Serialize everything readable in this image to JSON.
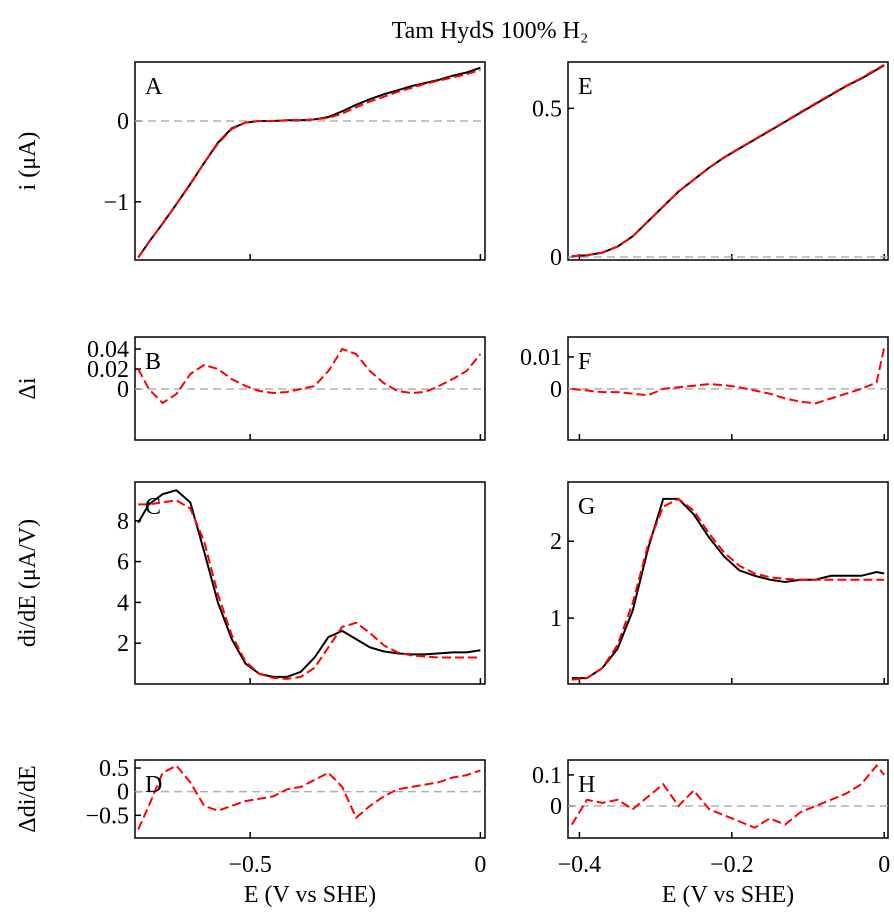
{
  "title": "Tam HydS 100% H₂",
  "chart_data": [
    {
      "type": "line",
      "label": "A",
      "ylabel": "i (μA)",
      "x": [
        -0.743,
        -0.72,
        -0.69,
        -0.66,
        -0.63,
        -0.6,
        -0.57,
        -0.54,
        -0.51,
        -0.48,
        -0.45,
        -0.42,
        -0.39,
        -0.36,
        -0.33,
        -0.3,
        -0.27,
        -0.24,
        -0.21,
        -0.18,
        -0.15,
        -0.12,
        -0.09,
        -0.06,
        -0.03,
        0
      ],
      "xlim": [
        -0.75,
        0.01
      ],
      "ylim": [
        -1.72,
        0.73
      ],
      "yticks": [
        {
          "value": -1,
          "label": "−1"
        },
        0
      ],
      "reference_line": 0,
      "series": [
        {
          "color": "#000000",
          "dashed": false,
          "values": [
            -1.69,
            -1.5,
            -1.27,
            -1.03,
            -0.78,
            -0.52,
            -0.27,
            -0.09,
            -0.02,
            0,
            0,
            0.01,
            0.01,
            0.02,
            0.05,
            0.12,
            0.2,
            0.27,
            0.33,
            0.38,
            0.43,
            0.47,
            0.51,
            0.56,
            0.6,
            0.66
          ]
        },
        {
          "color": "#ff0000",
          "dashed": true,
          "values": [
            -1.69,
            -1.5,
            -1.27,
            -1.03,
            -0.78,
            -0.52,
            -0.28,
            -0.1,
            -0.02,
            0,
            0,
            0.01,
            0.01,
            0.02,
            0.04,
            0.09,
            0.17,
            0.24,
            0.3,
            0.36,
            0.41,
            0.46,
            0.5,
            0.54,
            0.58,
            0.63
          ]
        }
      ]
    },
    {
      "type": "line",
      "label": "B",
      "ylabel": "Δi",
      "x": [
        -0.743,
        -0.72,
        -0.69,
        -0.66,
        -0.63,
        -0.6,
        -0.57,
        -0.54,
        -0.51,
        -0.48,
        -0.45,
        -0.42,
        -0.39,
        -0.36,
        -0.33,
        -0.3,
        -0.27,
        -0.24,
        -0.21,
        -0.18,
        -0.15,
        -0.12,
        -0.09,
        -0.06,
        -0.03,
        0
      ],
      "xlim": [
        -0.75,
        0.01
      ],
      "ylim": [
        -0.051,
        0.052
      ],
      "yticks": [
        0,
        0.02,
        0.04
      ],
      "reference_line": 0,
      "series": [
        {
          "color": "#ff0000",
          "dashed": true,
          "values": [
            0.02,
            0,
            -0.014,
            -0.005,
            0.015,
            0.024,
            0.02,
            0.01,
            0.003,
            -0.002,
            -0.004,
            -0.003,
            0,
            0.003,
            0.018,
            0.04,
            0.035,
            0.018,
            0.006,
            -0.002,
            -0.004,
            -0.003,
            0.003,
            0.01,
            0.018,
            0.035
          ]
        }
      ]
    },
    {
      "type": "line",
      "label": "C",
      "ylabel": "di/dE (μA/V)",
      "x": [
        -0.743,
        -0.72,
        -0.69,
        -0.66,
        -0.63,
        -0.6,
        -0.57,
        -0.54,
        -0.51,
        -0.48,
        -0.45,
        -0.42,
        -0.39,
        -0.36,
        -0.33,
        -0.3,
        -0.27,
        -0.24,
        -0.21,
        -0.18,
        -0.15,
        -0.12,
        -0.09,
        -0.06,
        -0.03,
        0
      ],
      "xlim": [
        -0.75,
        0.01
      ],
      "ylim": [
        0,
        9.9
      ],
      "yticks": [
        2,
        4,
        6,
        8
      ],
      "series": [
        {
          "color": "#000000",
          "dashed": false,
          "values": [
            7.9,
            8.8,
            9.3,
            9.5,
            8.9,
            6.5,
            4.0,
            2.2,
            1.0,
            0.5,
            0.35,
            0.35,
            0.6,
            1.3,
            2.3,
            2.6,
            2.2,
            1.8,
            1.6,
            1.5,
            1.45,
            1.45,
            1.5,
            1.55,
            1.55,
            1.65
          ]
        },
        {
          "color": "#ff0000",
          "dashed": true,
          "values": [
            8.8,
            8.8,
            8.9,
            9.0,
            8.6,
            7.0,
            4.4,
            2.4,
            1.1,
            0.5,
            0.3,
            0.25,
            0.35,
            0.8,
            1.8,
            2.8,
            3.0,
            2.5,
            1.9,
            1.55,
            1.4,
            1.35,
            1.3,
            1.3,
            1.3,
            1.3
          ]
        }
      ]
    },
    {
      "type": "line",
      "label": "D",
      "ylabel": "Δdi/dE",
      "xlabel": "E (V vs SHE)",
      "x": [
        -0.743,
        -0.72,
        -0.69,
        -0.66,
        -0.63,
        -0.6,
        -0.57,
        -0.54,
        -0.51,
        -0.48,
        -0.45,
        -0.42,
        -0.39,
        -0.36,
        -0.33,
        -0.3,
        -0.27,
        -0.24,
        -0.21,
        -0.18,
        -0.15,
        -0.12,
        -0.09,
        -0.06,
        -0.03,
        0
      ],
      "xlim": [
        -0.75,
        0.01
      ],
      "ylim": [
        -0.98,
        0.67
      ],
      "xticks": [
        {
          "value": -0.5,
          "label": "−0.5"
        },
        0
      ],
      "yticks": [
        {
          "value": -0.5,
          "label": "−0.5"
        },
        0,
        0.5
      ],
      "reference_line": 0,
      "series": [
        {
          "color": "#ff0000",
          "dashed": true,
          "values": [
            -0.8,
            -0.3,
            0.4,
            0.55,
            0.2,
            -0.3,
            -0.4,
            -0.3,
            -0.2,
            -0.15,
            -0.1,
            0.05,
            0.1,
            0.25,
            0.4,
            0.1,
            -0.55,
            -0.3,
            -0.1,
            0.05,
            0.1,
            0.15,
            0.2,
            0.3,
            0.35,
            0.45
          ]
        }
      ]
    },
    {
      "type": "line",
      "label": "E",
      "x": [
        -0.41,
        -0.39,
        -0.37,
        -0.35,
        -0.33,
        -0.31,
        -0.29,
        -0.27,
        -0.25,
        -0.23,
        -0.21,
        -0.19,
        -0.17,
        -0.15,
        -0.13,
        -0.11,
        -0.09,
        -0.07,
        -0.05,
        -0.03,
        -0.01,
        0
      ],
      "xlim": [
        -0.415,
        0.005
      ],
      "ylim": [
        -0.01,
        0.656
      ],
      "yticks": [
        0,
        0.5
      ],
      "reference_line": 0,
      "series": [
        {
          "color": "#000000",
          "dashed": false,
          "values": [
            0.003,
            0.006,
            0.015,
            0.035,
            0.07,
            0.12,
            0.17,
            0.22,
            0.26,
            0.3,
            0.335,
            0.365,
            0.395,
            0.425,
            0.455,
            0.485,
            0.515,
            0.545,
            0.575,
            0.6,
            0.63,
            0.645
          ]
        },
        {
          "color": "#ff0000",
          "dashed": true,
          "values": [
            0.003,
            0.006,
            0.015,
            0.035,
            0.07,
            0.12,
            0.17,
            0.22,
            0.26,
            0.3,
            0.335,
            0.366,
            0.396,
            0.426,
            0.456,
            0.487,
            0.517,
            0.547,
            0.576,
            0.602,
            0.632,
            0.647
          ]
        }
      ]
    },
    {
      "type": "line",
      "label": "F",
      "x": [
        -0.41,
        -0.39,
        -0.37,
        -0.35,
        -0.33,
        -0.31,
        -0.29,
        -0.27,
        -0.25,
        -0.23,
        -0.21,
        -0.19,
        -0.17,
        -0.15,
        -0.13,
        -0.11,
        -0.09,
        -0.07,
        -0.05,
        -0.03,
        -0.01,
        0
      ],
      "xlim": [
        -0.415,
        0.005
      ],
      "ylim": [
        -0.016,
        0.01625
      ],
      "yticks": [
        0,
        0.01
      ],
      "reference_line": 0,
      "series": [
        {
          "color": "#ff0000",
          "dashed": true,
          "values": [
            0,
            -0.0005,
            -0.001,
            -0.001,
            -0.0015,
            -0.002,
            0,
            0.0005,
            0.001,
            0.0015,
            0.0012,
            0.0005,
            -0.0005,
            -0.0015,
            -0.003,
            -0.004,
            -0.0045,
            -0.003,
            -0.0015,
            0,
            0.002,
            0.013
          ]
        }
      ]
    },
    {
      "type": "line",
      "label": "G",
      "x": [
        -0.41,
        -0.39,
        -0.37,
        -0.35,
        -0.33,
        -0.31,
        -0.29,
        -0.27,
        -0.25,
        -0.23,
        -0.21,
        -0.19,
        -0.17,
        -0.15,
        -0.13,
        -0.11,
        -0.09,
        -0.07,
        -0.05,
        -0.03,
        -0.01,
        0
      ],
      "xlim": [
        -0.415,
        0.005
      ],
      "ylim": [
        0.143,
        2.77
      ],
      "yticks": [
        1,
        2
      ],
      "series": [
        {
          "color": "#000000",
          "dashed": false,
          "values": [
            0.22,
            0.22,
            0.35,
            0.6,
            1.1,
            1.9,
            2.55,
            2.55,
            2.35,
            2.05,
            1.8,
            1.62,
            1.55,
            1.5,
            1.47,
            1.5,
            1.5,
            1.55,
            1.55,
            1.55,
            1.6,
            1.58
          ]
        },
        {
          "color": "#ff0000",
          "dashed": true,
          "values": [
            0.2,
            0.22,
            0.35,
            0.65,
            1.2,
            1.95,
            2.45,
            2.55,
            2.4,
            2.1,
            1.85,
            1.68,
            1.58,
            1.53,
            1.51,
            1.5,
            1.5,
            1.5,
            1.5,
            1.5,
            1.5,
            1.5
          ]
        }
      ]
    },
    {
      "type": "line",
      "label": "H",
      "xlabel": "E (V vs SHE)",
      "x": [
        -0.41,
        -0.39,
        -0.37,
        -0.35,
        -0.33,
        -0.31,
        -0.29,
        -0.27,
        -0.25,
        -0.23,
        -0.21,
        -0.19,
        -0.17,
        -0.15,
        -0.13,
        -0.11,
        -0.09,
        -0.07,
        -0.05,
        -0.03,
        -0.01,
        0
      ],
      "xlim": [
        -0.415,
        0.005
      ],
      "ylim": [
        -0.103,
        0.148
      ],
      "xticks": [
        {
          "value": -0.4,
          "label": "−0.4"
        },
        {
          "value": -0.2,
          "label": "−0.2"
        },
        0
      ],
      "yticks": [
        0,
        0.1
      ],
      "reference_line": 0,
      "series": [
        {
          "color": "#ff0000",
          "dashed": true,
          "values": [
            -0.06,
            0.02,
            0.01,
            0.02,
            -0.01,
            0.03,
            0.07,
            0,
            0.05,
            -0.01,
            -0.03,
            -0.05,
            -0.07,
            -0.04,
            -0.06,
            -0.02,
            0,
            0.02,
            0.04,
            0.07,
            0.13,
            0.1
          ]
        }
      ]
    }
  ]
}
